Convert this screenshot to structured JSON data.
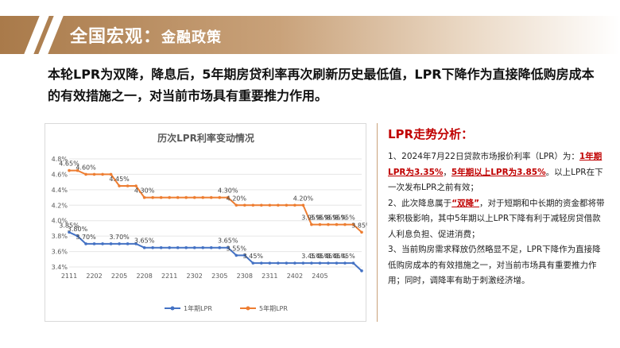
{
  "header": {
    "title": "全国宏观：",
    "subtitle": "金融政策"
  },
  "lead_text": "本轮LPR为双降，降息后，5年期房贷利率再次刷新历史最低值，LPR下降作为直接降低购房成本的有效措施之一，对当前市场具有重要推力作用。",
  "analysis": {
    "title": "LPR走势分析：",
    "p1_before": "1、2024年7月22日贷款市场报价利率（LPR）为：",
    "p1_red1": "1年期LPR为3.35%",
    "p1_sep": "，",
    "p1_red2": "5年期以上LPR为3.85%",
    "p1_after": "。以上LPR在下一次发布LPR之前有效；",
    "p2_before": "2、此次降息属于",
    "p2_red": "“双降”",
    "p2_after": "，对于短期和中长期的资金都将带来积极影响，其中5年期以上LPR下降有利于减轻房贷借款人利息负担、促进消费；",
    "p3": "3、当前购房需求释放仍然略显不足，LPR下降作为直接降低购房成本的有效措施之一，对当前市场具有重要推力作用；同时，调降率有助于刺激经济增。"
  },
  "chart_data": {
    "type": "line",
    "title": "历次LPR利率变动情况",
    "ylim": [
      3.4,
      4.8
    ],
    "yticks": [
      "3.4%",
      "3.6%",
      "3.8%",
      "4.0%",
      "4.2%",
      "4.4%",
      "4.6%",
      "4.8%"
    ],
    "xticks": [
      "2111",
      "2202",
      "2205",
      "2208",
      "2211",
      "2302",
      "2305",
      "2308",
      "2311",
      "2402",
      "2405"
    ],
    "grid": true,
    "legend_position": "bottom",
    "series": [
      {
        "name": "1年期LPR",
        "color": "#4472c4",
        "values": [
          3.85,
          3.8,
          3.7,
          3.7,
          3.7,
          3.7,
          3.7,
          3.7,
          3.7,
          3.65,
          3.65,
          3.65,
          3.65,
          3.65,
          3.65,
          3.65,
          3.65,
          3.65,
          3.65,
          3.65,
          3.55,
          3.55,
          3.45,
          3.45,
          3.45,
          3.45,
          3.45,
          3.45,
          3.45,
          3.45,
          3.45,
          3.45,
          3.45,
          3.45,
          3.45,
          3.35
        ],
        "labels": [
          [
            0,
            "3.85%"
          ],
          [
            1,
            "3.80%"
          ],
          [
            2,
            "3.70%"
          ],
          [
            6,
            "3.70%"
          ],
          [
            9,
            "3.65%"
          ],
          [
            19,
            "3.65%"
          ],
          [
            20,
            "3.55%"
          ],
          [
            22,
            "3.45%"
          ],
          [
            29,
            "3.45%"
          ],
          [
            30,
            "3.45%"
          ],
          [
            31,
            "3.45%"
          ],
          [
            32,
            "3.45%"
          ],
          [
            33,
            "3.45%"
          ]
        ]
      },
      {
        "name": "5年期LPR",
        "color": "#ed7d31",
        "values": [
          4.65,
          4.65,
          4.6,
          4.6,
          4.6,
          4.6,
          4.45,
          4.45,
          4.45,
          4.3,
          4.3,
          4.3,
          4.3,
          4.3,
          4.3,
          4.3,
          4.3,
          4.3,
          4.3,
          4.3,
          4.2,
          4.2,
          4.2,
          4.2,
          4.2,
          4.2,
          4.2,
          4.2,
          4.2,
          3.95,
          3.95,
          3.95,
          3.95,
          3.95,
          3.95,
          3.85
        ],
        "labels": [
          [
            0,
            "4.65%"
          ],
          [
            2,
            "4.60%"
          ],
          [
            6,
            "4.45%"
          ],
          [
            9,
            "4.30%"
          ],
          [
            19,
            "4.30%"
          ],
          [
            20,
            "4.20%"
          ],
          [
            28,
            "4.20%"
          ],
          [
            29,
            "3.95%"
          ],
          [
            30,
            "3.95%"
          ],
          [
            31,
            "3.95%"
          ],
          [
            32,
            "3.95%"
          ],
          [
            33,
            "3.95%"
          ],
          [
            35,
            "3.85%"
          ]
        ]
      }
    ]
  }
}
